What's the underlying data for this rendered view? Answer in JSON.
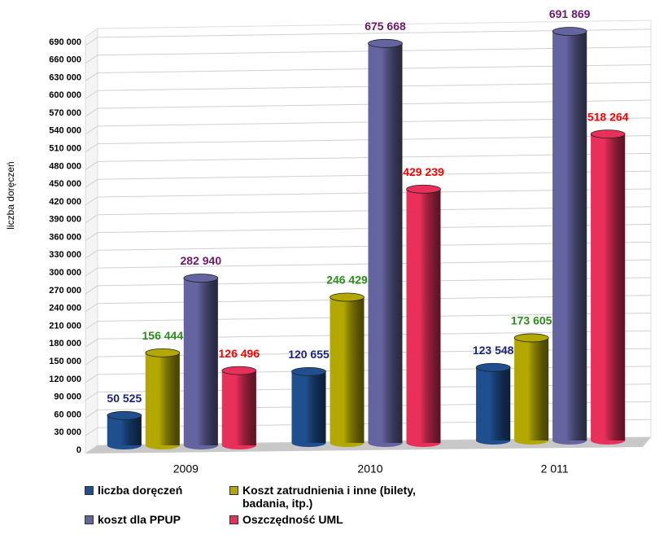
{
  "chart_data": {
    "type": "bar3d",
    "y_label": "liczba doręczeń",
    "categories": [
      "2009",
      "2010",
      "2 011"
    ],
    "series": [
      {
        "name": "liczba doręczeń",
        "color": "#1f4f8f",
        "label_color": "#1a237e",
        "values": [
          50525,
          120655,
          123548
        ],
        "value_labels": [
          "50 525",
          "120 655",
          "123 548"
        ]
      },
      {
        "name": "Koszt zatrudnienia i inne (bilety, badania, itp.)",
        "color": "#b3a800",
        "label_color": "#2e8b1e",
        "values": [
          156444,
          246429,
          173605
        ],
        "value_labels": [
          "156 444",
          "246 429",
          "173 605"
        ]
      },
      {
        "name": "koszt dla PPUP",
        "color": "#6464a0",
        "label_color": "#6a1b6a",
        "values": [
          282940,
          675668,
          691869
        ],
        "value_labels": [
          "282 940",
          "675 668",
          "691 869"
        ]
      },
      {
        "name": "Oszczędność UML",
        "color": "#e8305a",
        "label_color": "#ff0000",
        "values": [
          126496,
          429239,
          518264
        ],
        "value_labels": [
          "126 496",
          "429 239",
          "518 264"
        ]
      }
    ],
    "ylim": [
      0,
      705000
    ],
    "yticks": [
      0,
      {
        "value": 30000,
        "label": "30 000"
      },
      {
        "value": 60000,
        "label": "60 000"
      },
      {
        "value": 90000,
        "label": "90 000"
      },
      {
        "value": 120000,
        "label": "120 000"
      },
      {
        "value": 150000,
        "label": "150 000"
      },
      {
        "value": 180000,
        "label": "180 000"
      },
      {
        "value": 210000,
        "label": "210 000"
      },
      {
        "value": 240000,
        "label": "240 000"
      },
      {
        "value": 270000,
        "label": "270 000"
      },
      {
        "value": 300000,
        "label": "300 000"
      },
      {
        "value": 330000,
        "label": "330 000"
      },
      {
        "value": 360000,
        "label": "360 000"
      },
      {
        "value": 390000,
        "label": "390 000"
      },
      {
        "value": 420000,
        "label": "420 000"
      },
      {
        "value": 450000,
        "label": "450 000"
      },
      {
        "value": 480000,
        "label": "480 000"
      },
      {
        "value": 510000,
        "label": "510 000"
      },
      {
        "value": 540000,
        "label": "540 000"
      },
      {
        "value": 570000,
        "label": "570 000"
      },
      {
        "value": 600000,
        "label": "600 000"
      },
      {
        "value": 630000,
        "label": "630 000"
      },
      {
        "value": 660000,
        "label": "660 000"
      },
      {
        "value": 690000,
        "label": "690 000"
      }
    ],
    "grid": true
  }
}
